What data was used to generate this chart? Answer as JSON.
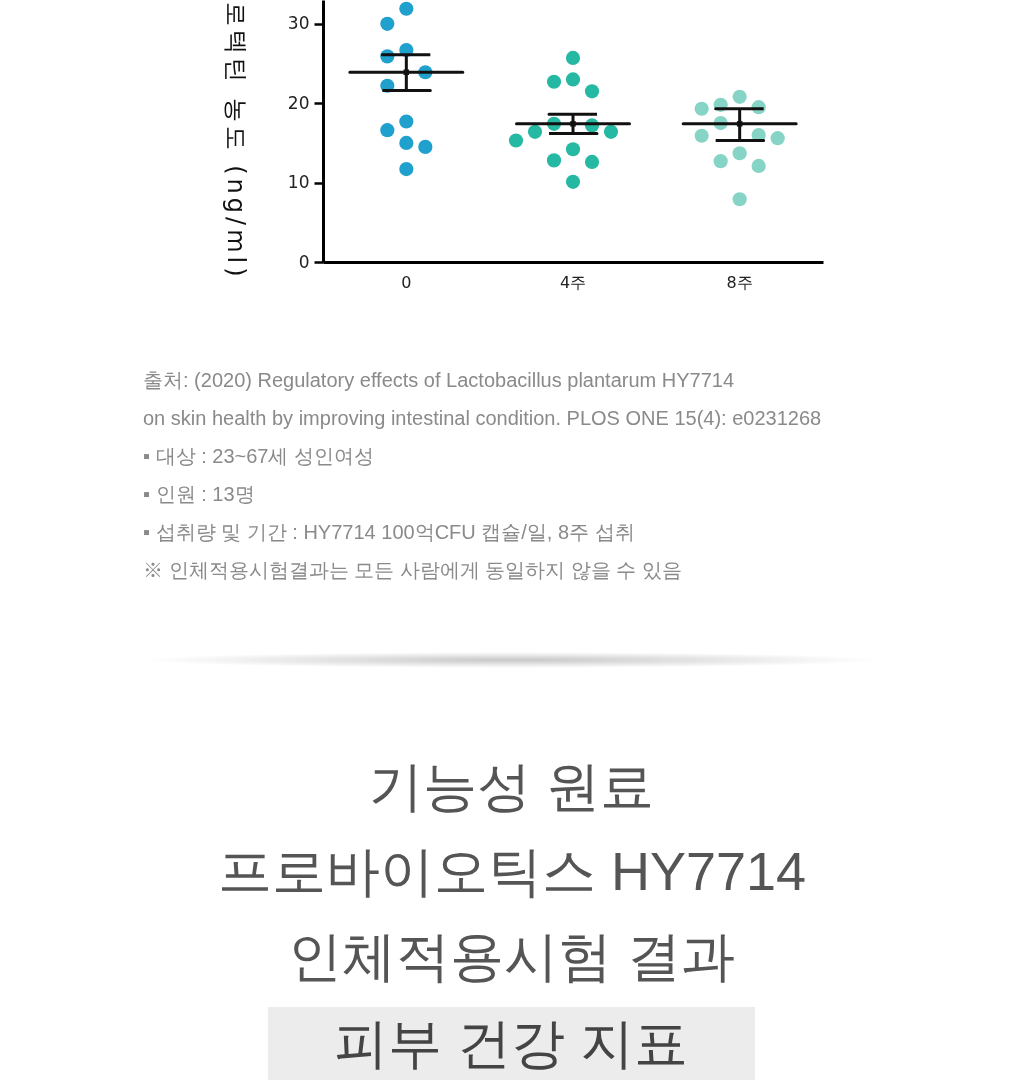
{
  "chart_data": {
    "type": "scatter",
    "categories": [
      "0",
      "4주",
      "8주"
    ],
    "ylabel": "로텍틴 농도 (ng/ml)",
    "ylim": [
      0,
      33
    ],
    "yticks": [
      0,
      10,
      20,
      30
    ],
    "series": [
      {
        "x": [
          "0",
          "0",
          "0",
          "0",
          "0",
          "0",
          "0",
          "0",
          "0",
          "0",
          "0"
        ],
        "values": [
          31.9,
          30.0,
          26.7,
          25.9,
          23.9,
          22.2,
          17.7,
          16.6,
          15.0,
          14.5,
          11.7
        ],
        "color": "#1fa0cd",
        "marker": "circle"
      },
      {
        "x": [
          "4주",
          "4주",
          "4주",
          "4주",
          "4주",
          "4주",
          "4주",
          "4주",
          "4주",
          "4주",
          "4주",
          "4주",
          "4주"
        ],
        "values": [
          25.7,
          23.0,
          22.7,
          21.5,
          17.4,
          17.2,
          16.4,
          16.4,
          15.3,
          14.2,
          12.8,
          12.6,
          10.1
        ],
        "color": "#25b8a2",
        "marker": "circle"
      },
      {
        "x": [
          "8주",
          "8주",
          "8주",
          "8주",
          "8주",
          "8주",
          "8주",
          "8주",
          "8주",
          "8주",
          "8주",
          "8주"
        ],
        "values": [
          20.8,
          19.8,
          19.5,
          19.3,
          17.5,
          16.0,
          15.9,
          15.6,
          13.7,
          12.7,
          12.1,
          7.9
        ],
        "color": "#85d4c6",
        "marker": "circle"
      },
      {
        "type": "scatter",
        "values": [
          23.9,
          17.4,
          17.4
        ],
        "errors": [
          [
            21.6,
            26.1
          ],
          [
            16.2,
            18.6
          ],
          [
            15.3,
            19.3
          ]
        ],
        "color": "#111111",
        "marker": "square"
      }
    ],
    "annotations": [
      "출처: (2020) Regulatory effects of Lactobacillus plantarum HY7714\non skin health by improving intestinal condition. PLOS ONE 15(4): e0231268",
      "▪ 대상 : 23~67세 성인여성",
      "▪ 인원 : 13명",
      "▪ 섭취량 및 기간 : HY7714 100억CFU 캡슐/일, 8주 섭취",
      "※ 인체적용시험결과는 모든 사람에게 동일하지 않을 수 있음",
      "기능성 원료\n프로바이오틱스 HY7714\n인체적용시험 결과",
      "피부 건강 지표"
    ]
  }
}
